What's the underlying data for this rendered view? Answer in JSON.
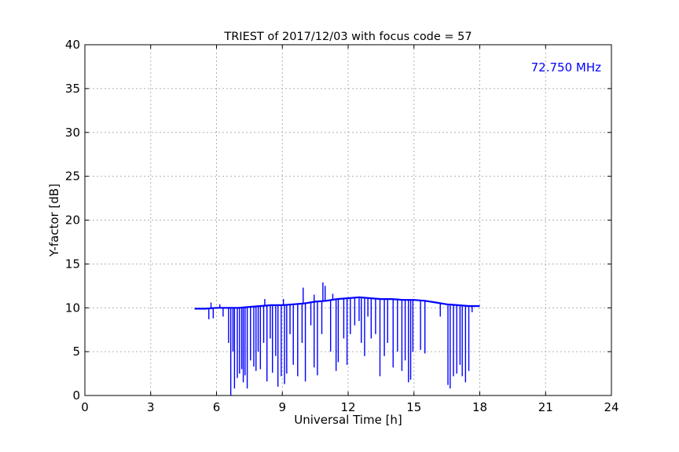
{
  "chart_data": {
    "type": "line",
    "title": "TRIEST of 2017/12/03 with focus code = 57",
    "xlabel": "Universal Time [h]",
    "ylabel": "Y-factor [dB]",
    "xlim": [
      0,
      24
    ],
    "ylim": [
      0,
      40
    ],
    "xticks": [
      0,
      3,
      6,
      9,
      12,
      15,
      18,
      21,
      24
    ],
    "yticks": [
      0,
      5,
      10,
      15,
      20,
      25,
      30,
      35,
      40
    ],
    "grid": true,
    "annotation": {
      "text": "72.750 MHz",
      "color": "#0000ff"
    },
    "series": [
      {
        "color": "#0000ff",
        "baseline": [
          [
            5.0,
            9.9
          ],
          [
            5.5,
            9.9
          ],
          [
            6.0,
            10.0
          ],
          [
            6.5,
            10.0
          ],
          [
            7.0,
            10.0
          ],
          [
            7.5,
            10.1
          ],
          [
            8.0,
            10.2
          ],
          [
            8.5,
            10.3
          ],
          [
            9.0,
            10.3
          ],
          [
            9.5,
            10.4
          ],
          [
            10.0,
            10.5
          ],
          [
            10.5,
            10.7
          ],
          [
            11.0,
            10.8
          ],
          [
            11.5,
            11.0
          ],
          [
            12.0,
            11.1
          ],
          [
            12.5,
            11.2
          ],
          [
            13.0,
            11.1
          ],
          [
            13.5,
            11.0
          ],
          [
            14.0,
            11.0
          ],
          [
            14.5,
            10.9
          ],
          [
            15.0,
            10.9
          ],
          [
            15.5,
            10.8
          ],
          [
            16.0,
            10.6
          ],
          [
            16.5,
            10.4
          ],
          [
            17.0,
            10.3
          ],
          [
            17.5,
            10.2
          ],
          [
            18.0,
            10.2
          ]
        ],
        "spikes_down": [
          [
            5.65,
            8.7
          ],
          [
            5.85,
            8.8
          ],
          [
            6.3,
            9.0
          ],
          [
            6.55,
            6.0
          ],
          [
            6.65,
            0.0
          ],
          [
            6.75,
            5.0
          ],
          [
            6.82,
            0.8
          ],
          [
            6.95,
            2.0
          ],
          [
            7.05,
            2.5
          ],
          [
            7.15,
            3.0
          ],
          [
            7.22,
            1.5
          ],
          [
            7.3,
            2.3
          ],
          [
            7.4,
            0.8
          ],
          [
            7.55,
            4.0
          ],
          [
            7.7,
            3.3
          ],
          [
            7.8,
            2.8
          ],
          [
            7.9,
            5.0
          ],
          [
            8.0,
            3.0
          ],
          [
            8.15,
            6.0
          ],
          [
            8.3,
            1.6
          ],
          [
            8.45,
            6.5
          ],
          [
            8.55,
            2.6
          ],
          [
            8.7,
            4.5
          ],
          [
            8.8,
            1.0
          ],
          [
            8.95,
            2.2
          ],
          [
            9.1,
            1.3
          ],
          [
            9.2,
            2.5
          ],
          [
            9.35,
            7.0
          ],
          [
            9.5,
            3.5
          ],
          [
            9.7,
            2.2
          ],
          [
            9.9,
            6.0
          ],
          [
            10.05,
            1.6
          ],
          [
            10.3,
            8.0
          ],
          [
            10.45,
            3.2
          ],
          [
            10.6,
            2.3
          ],
          [
            10.8,
            7.0
          ],
          [
            11.2,
            5.0
          ],
          [
            11.45,
            2.8
          ],
          [
            11.55,
            3.8
          ],
          [
            11.8,
            6.5
          ],
          [
            11.95,
            3.5
          ],
          [
            12.1,
            7.0
          ],
          [
            12.3,
            8.0
          ],
          [
            12.5,
            8.5
          ],
          [
            12.6,
            6.0
          ],
          [
            12.75,
            4.5
          ],
          [
            12.9,
            9.0
          ],
          [
            13.05,
            6.5
          ],
          [
            13.25,
            7.0
          ],
          [
            13.45,
            2.2
          ],
          [
            13.65,
            4.5
          ],
          [
            13.8,
            6.0
          ],
          [
            14.05,
            3.2
          ],
          [
            14.25,
            5.0
          ],
          [
            14.45,
            2.8
          ],
          [
            14.6,
            4.0
          ],
          [
            14.75,
            1.5
          ],
          [
            14.85,
            1.8
          ],
          [
            14.95,
            5.0
          ],
          [
            15.3,
            5.2
          ],
          [
            15.5,
            4.8
          ],
          [
            16.2,
            9.0
          ],
          [
            16.55,
            1.2
          ],
          [
            16.65,
            0.8
          ],
          [
            16.8,
            2.2
          ],
          [
            16.95,
            2.5
          ],
          [
            17.1,
            3.5
          ],
          [
            17.2,
            2.2
          ],
          [
            17.35,
            1.5
          ],
          [
            17.5,
            2.8
          ],
          [
            17.65,
            9.5
          ]
        ],
        "spikes_up": [
          [
            5.75,
            10.6
          ],
          [
            6.15,
            10.4
          ],
          [
            8.2,
            11.0
          ],
          [
            9.05,
            11.0
          ],
          [
            9.95,
            12.3
          ],
          [
            10.45,
            11.5
          ],
          [
            10.85,
            12.9
          ],
          [
            10.95,
            12.5
          ],
          [
            11.3,
            11.6
          ]
        ]
      }
    ]
  }
}
